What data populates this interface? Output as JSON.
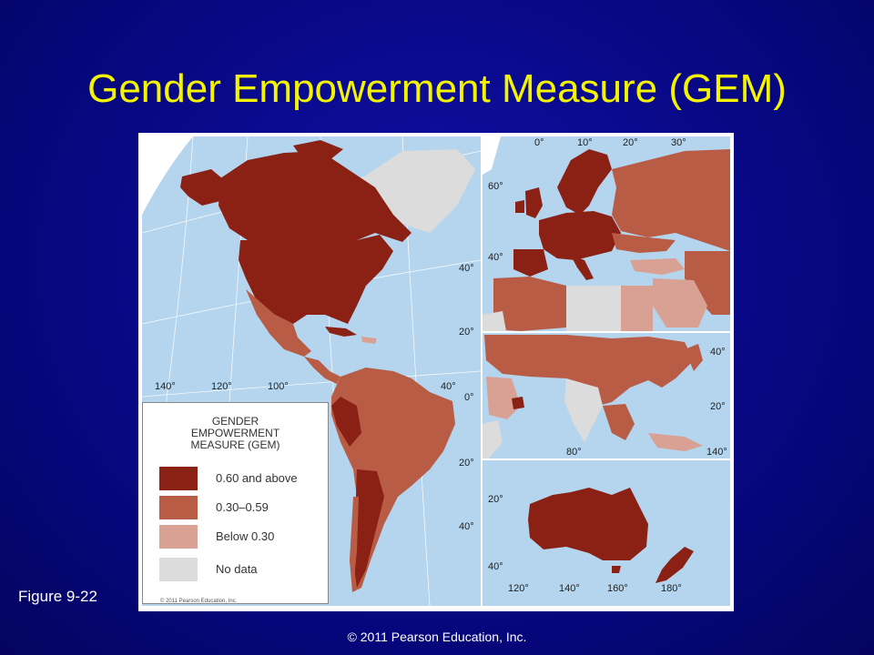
{
  "slide": {
    "title": "Gender Empowerment Measure (GEM)",
    "figure_label": "Figure 9-22",
    "footer": "© 2011 Pearson Education, Inc."
  },
  "legend": {
    "title": "GENDER\nEMPOWERMENT\nMEASURE (GEM)",
    "items": [
      {
        "label": "0.60 and above",
        "color": "#8b2015"
      },
      {
        "label": "0.30–0.59",
        "color": "#b95c45"
      },
      {
        "label": "Below 0.30",
        "color": "#d9a193"
      },
      {
        "label": "No data",
        "color": "#dcdcdc"
      }
    ],
    "copyright": "© 2011 Pearson Education, Inc."
  },
  "map": {
    "colors": {
      "ocean": "#b4d5ed",
      "high": "#8b2015",
      "medium": "#b95c45",
      "low": "#d9a193",
      "nodata": "#dcdcdc",
      "grid": "#ffffff"
    },
    "americas_lon_labels": [
      "140°",
      "120°",
      "100°",
      "40°"
    ],
    "americas_lat_labels": [
      "40°",
      "20°",
      "0°",
      "20°",
      "40°"
    ],
    "europe_lon_labels": [
      "0°",
      "10°",
      "20°",
      "30°"
    ],
    "europe_lat_labels": [
      "60°",
      "40°"
    ],
    "asia_lat_labels": [
      "40°",
      "20°"
    ],
    "asia_lon_labels": [
      "80°",
      "140°"
    ],
    "oceania_lat_labels": [
      "20°",
      "40°"
    ],
    "oceania_lon_labels": [
      "120°",
      "140°",
      "160°",
      "180°"
    ]
  }
}
